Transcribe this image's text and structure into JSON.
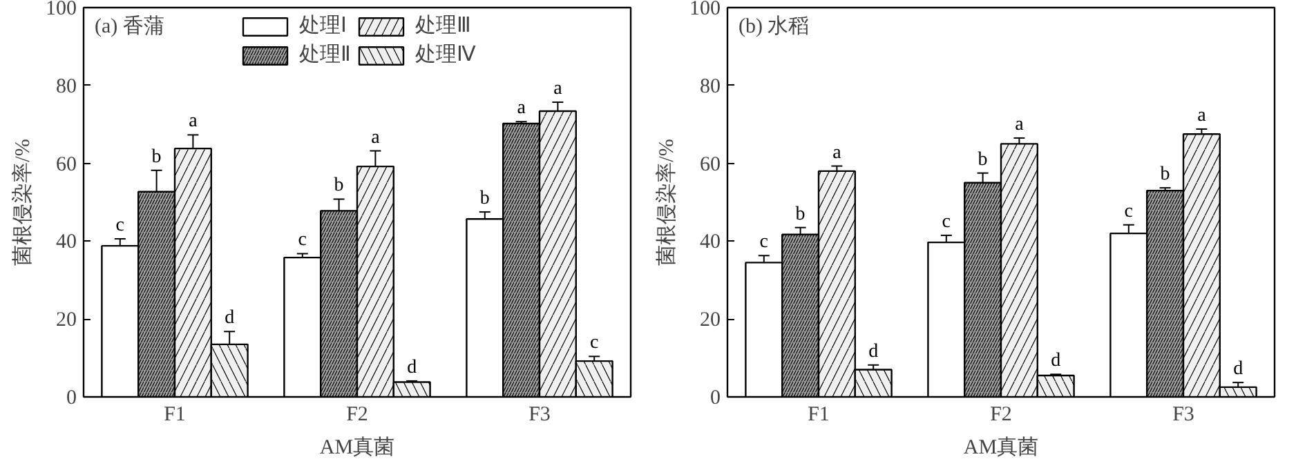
{
  "chart_data": [
    {
      "type": "bar",
      "title": "(a) 香蒲",
      "xlabel": "AM真菌",
      "ylabel": "菌根侵染率/%",
      "categories": [
        "F1",
        "F2",
        "F3"
      ],
      "ylim": [
        0,
        100
      ],
      "yticks": [
        0,
        20,
        40,
        60,
        80,
        100
      ],
      "grid": false,
      "legend": "top",
      "series": [
        {
          "name": "处理Ⅰ",
          "color": "#ffffff",
          "values": [
            38.8,
            35.8,
            45.7
          ],
          "errors": [
            1.8,
            1,
            1.8
          ],
          "value_labels": [
            "c",
            "c",
            "b"
          ]
        },
        {
          "name": "处理Ⅱ",
          "color": "#a0a0a0",
          "values": [
            52.7,
            47.8,
            70.2
          ],
          "errors": [
            5.5,
            3,
            0.5
          ],
          "value_labels": [
            "b",
            "b",
            "a"
          ]
        },
        {
          "name": "处理Ⅲ",
          "color": "#f0f0f0",
          "values": [
            63.8,
            59.2,
            73.4
          ],
          "errors": [
            3.5,
            4,
            2.3
          ],
          "value_labels": [
            "a",
            "a",
            "a"
          ]
        },
        {
          "name": "处理Ⅳ",
          "color": "#f0f0f0",
          "values": [
            13.5,
            3.8,
            9.2
          ],
          "errors": [
            3.3,
            0.3,
            1.2
          ],
          "value_labels": [
            "d",
            "d",
            "c"
          ]
        }
      ]
    },
    {
      "type": "bar",
      "title": "(b) 水稻",
      "xlabel": "AM真菌",
      "ylabel": "菌根侵染率/%",
      "categories": [
        "F1",
        "F2",
        "F3"
      ],
      "ylim": [
        0,
        100
      ],
      "yticks": [
        0,
        20,
        40,
        60,
        80,
        100
      ],
      "grid": false,
      "legend": false,
      "series": [
        {
          "color": "#ffffff",
          "values": [
            34.5,
            39.7,
            42
          ],
          "errors": [
            1.8,
            1.8,
            2.2
          ],
          "value_labels": [
            "c",
            "c",
            "c"
          ]
        },
        {
          "color": "#a0a0a0",
          "values": [
            41.7,
            55,
            53
          ],
          "errors": [
            1.8,
            2.5,
            0.7
          ],
          "value_labels": [
            "b",
            "b",
            "b"
          ]
        },
        {
          "color": "#f0f0f0",
          "values": [
            58,
            65,
            67.5
          ],
          "errors": [
            1.3,
            1.5,
            1.3
          ],
          "value_labels": [
            "a",
            "a",
            "a"
          ]
        },
        {
          "color": "#f0f0f0",
          "values": [
            7,
            5.5,
            2.5
          ],
          "errors": [
            1.2,
            0.3,
            1.2
          ],
          "value_labels": [
            "d",
            "d",
            "d"
          ]
        }
      ]
    }
  ]
}
